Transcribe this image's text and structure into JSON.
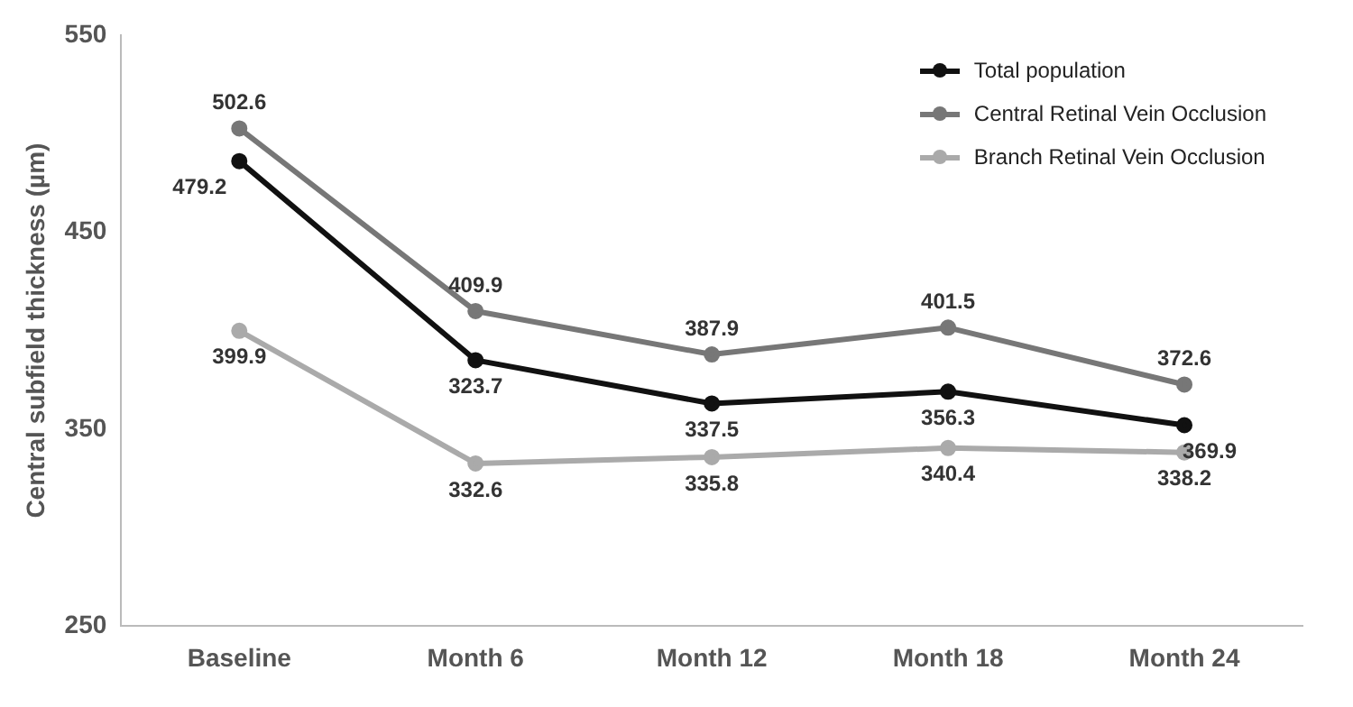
{
  "chart_data": {
    "type": "line",
    "ylabel": "Central subfield thickness (µm)",
    "categories": [
      "Baseline",
      "Month 6",
      "Month 12",
      "Month 18",
      "Month 24"
    ],
    "series": [
      {
        "name": "Total population",
        "color": "#111111",
        "values": [
          486,
          385,
          363,
          369,
          352
        ]
      },
      {
        "name": "Central Retinal Vein Occlusion",
        "color": "#777777",
        "values": [
          502.6,
          409.9,
          387.9,
          401.5,
          372.6
        ],
        "value_labels": [
          "502.6",
          "409.9",
          "387.9",
          "401.5",
          "372.6"
        ]
      },
      {
        "name": "Branch Retinal Vein Occlusion",
        "color": "#aaaaaa",
        "values": [
          399.9,
          332.6,
          335.8,
          340.4,
          338.2
        ],
        "value_labels": [
          "399.9",
          "332.6",
          "335.8",
          "340.4",
          "338.2"
        ]
      }
    ],
    "annotations": [
      "479.2",
      "323.7",
      "337.5",
      "356.3",
      "369.9"
    ],
    "ylim": [
      250,
      550
    ],
    "yticks": [
      250,
      350,
      450,
      550
    ],
    "grid": false,
    "legend": "top right",
    "marker": "circle",
    "line_style": "solid"
  }
}
